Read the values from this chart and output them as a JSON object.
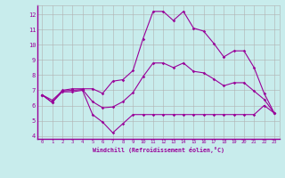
{
  "xlabel": "Windchill (Refroidissement éolien,°C)",
  "background_color": "#c8ecec",
  "line_color": "#990099",
  "grid_color": "#b0b0b0",
  "xlim": [
    -0.5,
    23.5
  ],
  "ylim": [
    3.8,
    12.6
  ],
  "yticks": [
    4,
    5,
    6,
    7,
    8,
    9,
    10,
    11,
    12
  ],
  "xticks": [
    0,
    1,
    2,
    3,
    4,
    5,
    6,
    7,
    8,
    9,
    10,
    11,
    12,
    13,
    14,
    15,
    16,
    17,
    18,
    19,
    20,
    21,
    22,
    23
  ],
  "series": [
    [
      6.7,
      6.2,
      6.9,
      6.9,
      7.0,
      5.4,
      4.9,
      4.2,
      4.8,
      5.4,
      5.4,
      5.4,
      5.4,
      5.4,
      5.4,
      5.4,
      5.4,
      5.4,
      5.4,
      5.4,
      5.4,
      5.4,
      6.0,
      5.5
    ],
    [
      6.7,
      6.2,
      7.0,
      7.1,
      7.1,
      7.1,
      6.8,
      7.6,
      7.7,
      8.3,
      10.4,
      12.2,
      12.2,
      11.6,
      12.2,
      11.1,
      10.9,
      10.1,
      9.2,
      9.6,
      9.6,
      8.5,
      6.8,
      5.5
    ],
    [
      6.7,
      6.35,
      6.95,
      7.0,
      7.05,
      6.25,
      5.85,
      5.9,
      6.25,
      6.85,
      7.9,
      8.8,
      8.8,
      8.5,
      8.8,
      8.25,
      8.15,
      7.75,
      7.3,
      7.5,
      7.5,
      6.95,
      6.4,
      5.5
    ]
  ]
}
